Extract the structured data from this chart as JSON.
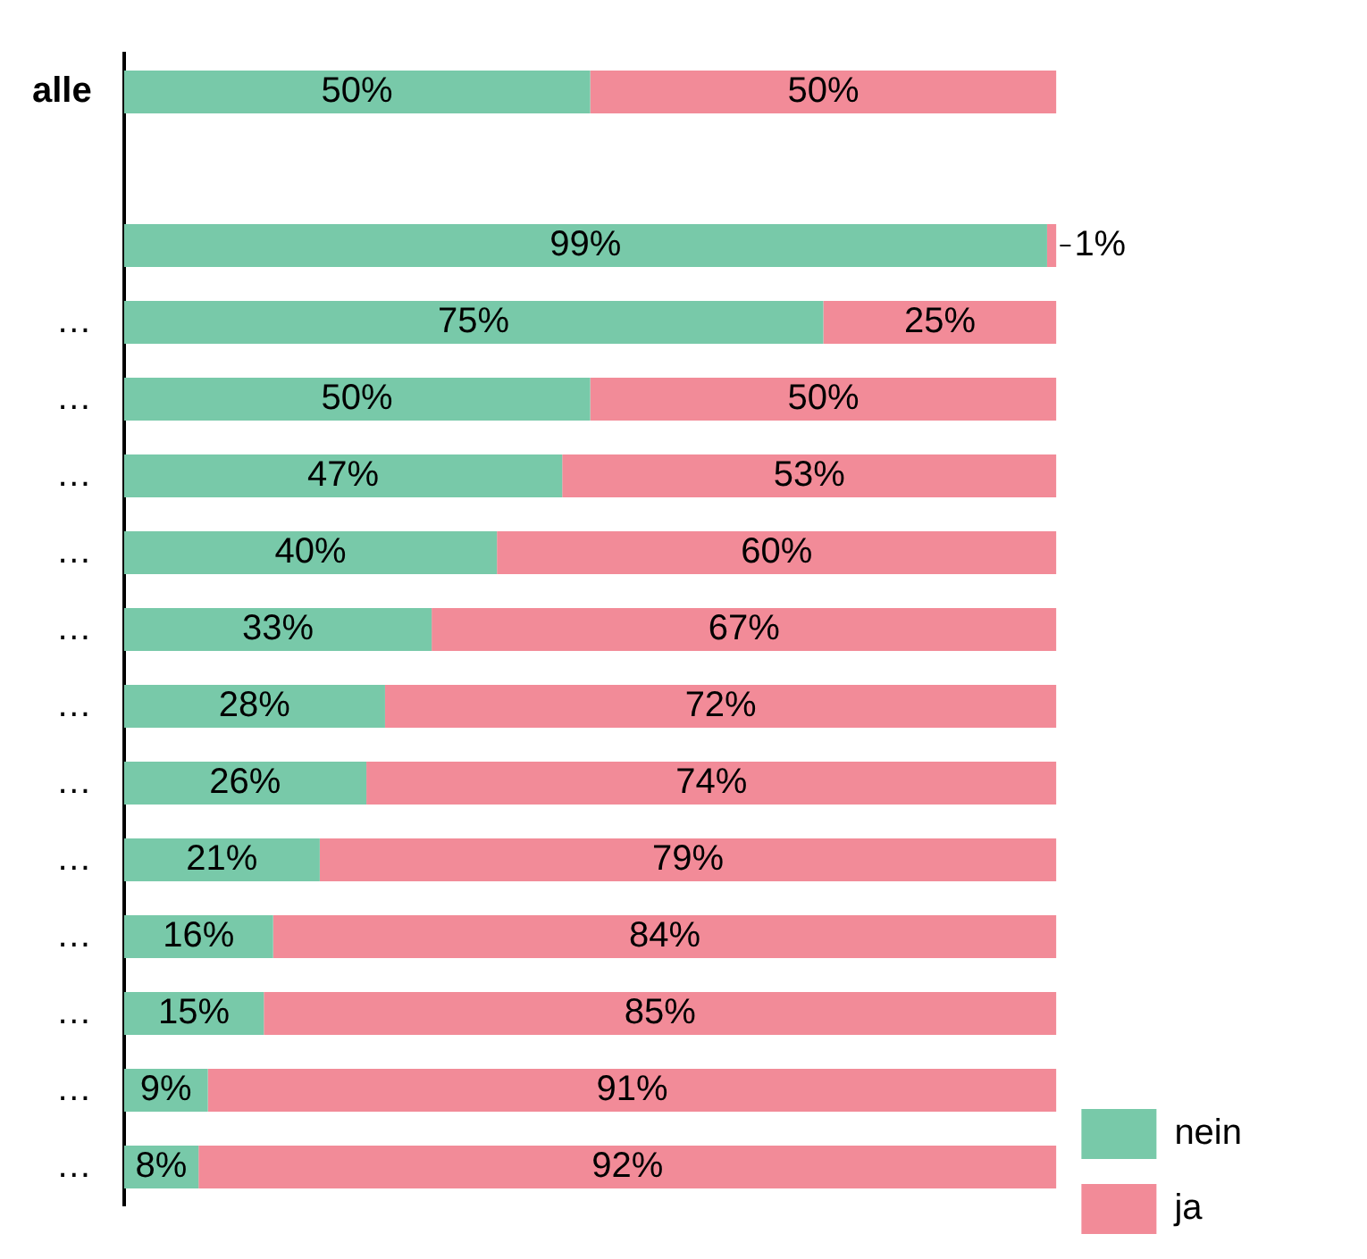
{
  "chart_data": {
    "type": "bar",
    "orientation": "horizontal",
    "stacked": true,
    "categories": [
      "alle",
      null,
      null,
      "…",
      "…",
      "…",
      "…",
      "…",
      "…",
      "…",
      "…",
      "…",
      "…",
      "…",
      "…"
    ],
    "series": [
      {
        "name": "nein",
        "color": "#78c9a9",
        "values": [
          50,
          null,
          99,
          75,
          50,
          47,
          40,
          33,
          28,
          26,
          21,
          16,
          15,
          9,
          8
        ],
        "value_labels": [
          "50%",
          null,
          "99%",
          "75%",
          "50%",
          "47%",
          "40%",
          "33%",
          "28%",
          "26%",
          "21%",
          "16%",
          "15%",
          "9%",
          "8%"
        ]
      },
      {
        "name": "ja",
        "color": "#f28b98",
        "values": [
          50,
          null,
          1,
          25,
          50,
          53,
          60,
          67,
          72,
          74,
          79,
          84,
          85,
          91,
          92
        ],
        "value_labels": [
          "50%",
          null,
          "1%",
          "25%",
          "50%",
          "53%",
          "60%",
          "67%",
          "72%",
          "74%",
          "79%",
          "84%",
          "85%",
          "91%",
          "92%"
        ]
      }
    ],
    "tick_labels": "y",
    "grid": false,
    "legend": "bottom right"
  }
}
